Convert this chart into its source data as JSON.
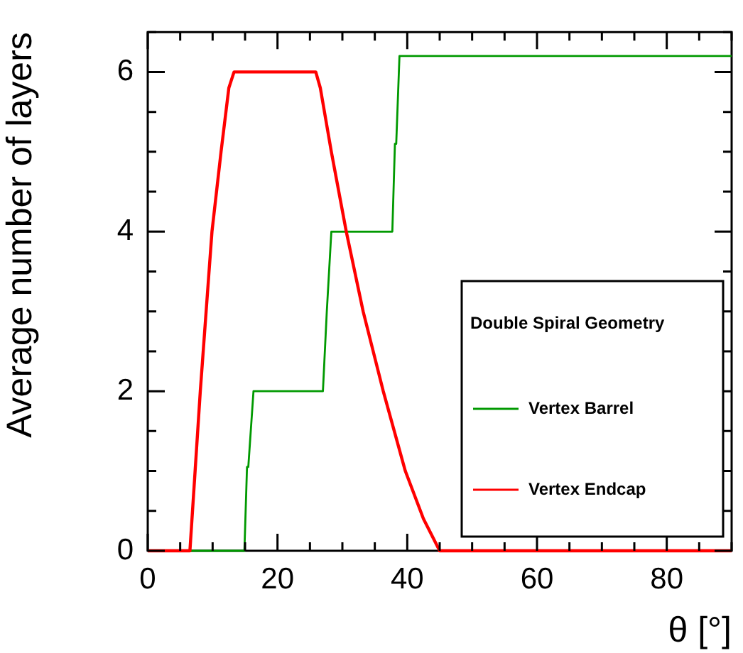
{
  "chart_data": {
    "type": "line",
    "xlabel": "θ [°]",
    "ylabel": "Average number of layers",
    "legend_title": "Double Spiral Geometry",
    "legend": "bottom right",
    "grid": false,
    "marker": "none",
    "line_style": "solid",
    "xlim": [
      0,
      90
    ],
    "ylim": [
      0,
      6.5
    ],
    "xticks": [
      0,
      {
        "value": 5,
        "label": null
      },
      {
        "value": 10,
        "label": null
      },
      {
        "value": 15,
        "label": null
      },
      20,
      {
        "value": 25,
        "label": null
      },
      {
        "value": 30,
        "label": null
      },
      {
        "value": 35,
        "label": null
      },
      40,
      {
        "value": 45,
        "label": null
      },
      {
        "value": 50,
        "label": null
      },
      {
        "value": 55,
        "label": null
      },
      60,
      {
        "value": 65,
        "label": null
      },
      {
        "value": 70,
        "label": null
      },
      {
        "value": 75,
        "label": null
      },
      80,
      {
        "value": 85,
        "label": null
      },
      {
        "value": 90,
        "label": null
      }
    ],
    "yticks": [
      0,
      {
        "value": 0.5,
        "label": null
      },
      {
        "value": 1,
        "label": null
      },
      {
        "value": 1.5,
        "label": null
      },
      2,
      {
        "value": 2.5,
        "label": null
      },
      {
        "value": 3,
        "label": null
      },
      {
        "value": 3.5,
        "label": null
      },
      4,
      {
        "value": 4.5,
        "label": null
      },
      {
        "value": 5,
        "label": null
      },
      {
        "value": 5.5,
        "label": null
      },
      6,
      {
        "value": 6.5,
        "label": null
      }
    ],
    "series": [
      {
        "name": "Vertex Barrel",
        "color": "#009900",
        "x": [
          0,
          14.9,
          15.3,
          15.5,
          16.3,
          27.0,
          27.6,
          27.8,
          28.3,
          37.7,
          38.1,
          38.3,
          38.8,
          90
        ],
        "values": [
          0,
          0,
          1.05,
          1.05,
          2,
          2,
          3,
          3,
          4,
          4,
          5.1,
          5.1,
          6.2,
          6.2
        ]
      },
      {
        "name": "Vertex Endcap",
        "color": "#ff0000",
        "x": [
          0,
          6.5,
          7.3,
          8.1,
          9.0,
          9.9,
          11.3,
          12.5,
          13.3,
          25.9,
          26.6,
          28.3,
          30.6,
          33.2,
          36.3,
          39.7,
          42.5,
          45.0,
          90
        ],
        "values": [
          0,
          0,
          1,
          2,
          3,
          4,
          5,
          5.8,
          6,
          6,
          5.8,
          5,
          4,
          3,
          2,
          1,
          0.4,
          0,
          0
        ]
      }
    ]
  }
}
